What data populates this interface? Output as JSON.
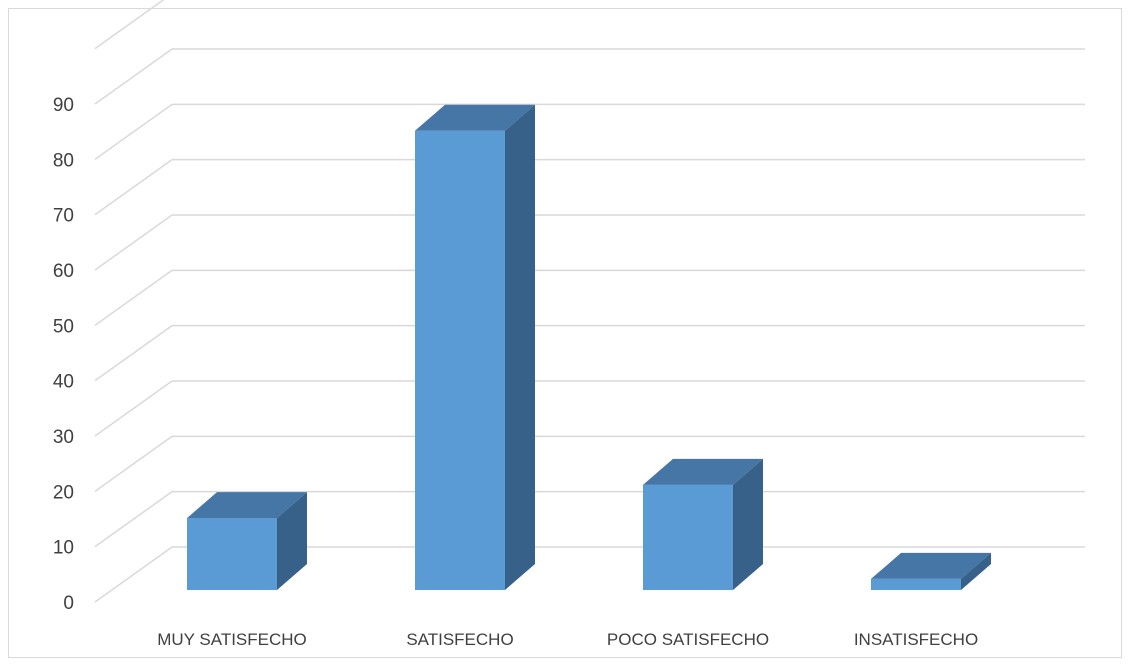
{
  "chart_data": {
    "type": "bar",
    "style": "3d-column",
    "categories": [
      "MUY SATISFECHO",
      "SATISFECHO",
      "POCO SATISFECHO",
      "INSATISFECHO"
    ],
    "values": [
      13,
      83,
      19,
      2
    ],
    "yticks": [
      "0",
      "10",
      "20",
      "30",
      "40",
      "50",
      "60",
      "70",
      "80",
      "90"
    ],
    "ylim": [
      0,
      90
    ],
    "grid": true,
    "colors": {
      "front": "#5b9bd5",
      "top": "#4676a6",
      "side": "#376188",
      "grid": "#d9d9d9",
      "text": "#404040"
    }
  }
}
